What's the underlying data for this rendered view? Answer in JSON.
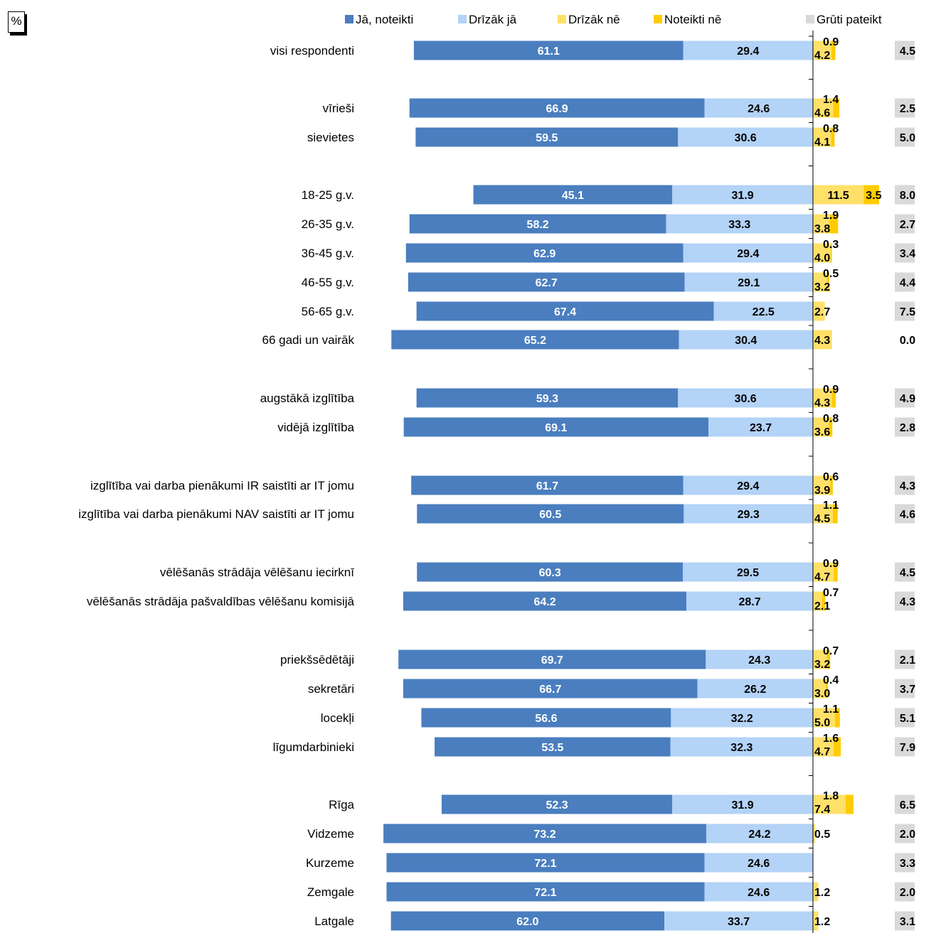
{
  "unit_label": "%",
  "chart_data": {
    "type": "bar",
    "orientation": "horizontal",
    "stacking": "diverging",
    "legend_position": "top",
    "grid": false,
    "series": [
      {
        "name": "Jā, noteikti",
        "color": "#4a7ebf",
        "side": "left"
      },
      {
        "name": "Drīzāk jā",
        "color": "#b3d3f7",
        "side": "left"
      },
      {
        "name": "Drīzāk nē",
        "color": "#ffe068",
        "side": "right"
      },
      {
        "name": "Noteikti nē",
        "color": "#ffcc00",
        "side": "right"
      },
      {
        "name": "Grūti pateikt",
        "color": "#d9d9d9",
        "side": "separate"
      }
    ],
    "rows": [
      {
        "label": "visi respondenti",
        "values": [
          61.1,
          29.4,
          4.2,
          0.9,
          4.5
        ]
      },
      {
        "label": "vīrieši",
        "values": [
          66.9,
          24.6,
          4.6,
          1.4,
          2.5
        ]
      },
      {
        "label": "sievietes",
        "values": [
          59.5,
          30.6,
          4.1,
          0.8,
          5.0
        ]
      },
      {
        "label": "18-25 g.v.",
        "values": [
          45.1,
          31.9,
          11.5,
          3.5,
          8.0
        ]
      },
      {
        "label": "26-35 g.v.",
        "values": [
          58.2,
          33.3,
          3.8,
          1.9,
          2.7
        ]
      },
      {
        "label": "36-45 g.v.",
        "values": [
          62.9,
          29.4,
          4.0,
          0.3,
          3.4
        ]
      },
      {
        "label": "46-55 g.v.",
        "values": [
          62.7,
          29.1,
          3.2,
          0.5,
          4.4
        ]
      },
      {
        "label": "56-65 g.v.",
        "values": [
          67.4,
          22.5,
          2.7,
          null,
          7.5
        ]
      },
      {
        "label": "66 gadi un vairāk",
        "values": [
          65.2,
          30.4,
          4.3,
          null,
          0.0
        ]
      },
      {
        "label": "augstākā izglītība",
        "values": [
          59.3,
          30.6,
          4.3,
          0.9,
          4.9
        ]
      },
      {
        "label": "vidējā izglītība",
        "values": [
          69.1,
          23.7,
          3.6,
          0.8,
          2.8
        ]
      },
      {
        "label": "izglītība vai darba pienākumi IR saistīti ar IT jomu",
        "values": [
          61.7,
          29.4,
          3.9,
          0.6,
          4.3
        ]
      },
      {
        "label": "izglītība vai darba pienākumi NAV saistīti ar IT jomu",
        "values": [
          60.5,
          29.3,
          4.5,
          1.1,
          4.6
        ]
      },
      {
        "label": "vēlēšanās strādāja vēlēšanu iecirknī",
        "values": [
          60.3,
          29.5,
          4.7,
          0.9,
          4.5
        ]
      },
      {
        "label": "vēlēšanās strādāja pašvaldības vēlēšanu komisijā",
        "values": [
          64.2,
          28.7,
          2.1,
          0.7,
          4.3
        ]
      },
      {
        "label": "priekšsēdētāji",
        "values": [
          69.7,
          24.3,
          3.2,
          0.7,
          2.1
        ]
      },
      {
        "label": "sekretāri",
        "values": [
          66.7,
          26.2,
          3.0,
          0.4,
          3.7
        ]
      },
      {
        "label": "locekļi",
        "values": [
          56.6,
          32.2,
          5.0,
          1.1,
          5.1
        ]
      },
      {
        "label": "līgumdarbinieki",
        "values": [
          53.5,
          32.3,
          4.7,
          1.6,
          7.9
        ]
      },
      {
        "label": "Rīga",
        "values": [
          52.3,
          31.9,
          7.4,
          1.8,
          6.5
        ]
      },
      {
        "label": "Vidzeme",
        "values": [
          73.2,
          24.2,
          0.5,
          null,
          2.0
        ]
      },
      {
        "label": "Kurzeme",
        "values": [
          72.1,
          24.6,
          null,
          null,
          3.3
        ]
      },
      {
        "label": "Zemgale",
        "values": [
          72.1,
          24.6,
          1.2,
          null,
          2.0
        ]
      },
      {
        "label": "Latgale",
        "values": [
          62.0,
          33.7,
          1.2,
          null,
          3.1
        ]
      }
    ]
  }
}
